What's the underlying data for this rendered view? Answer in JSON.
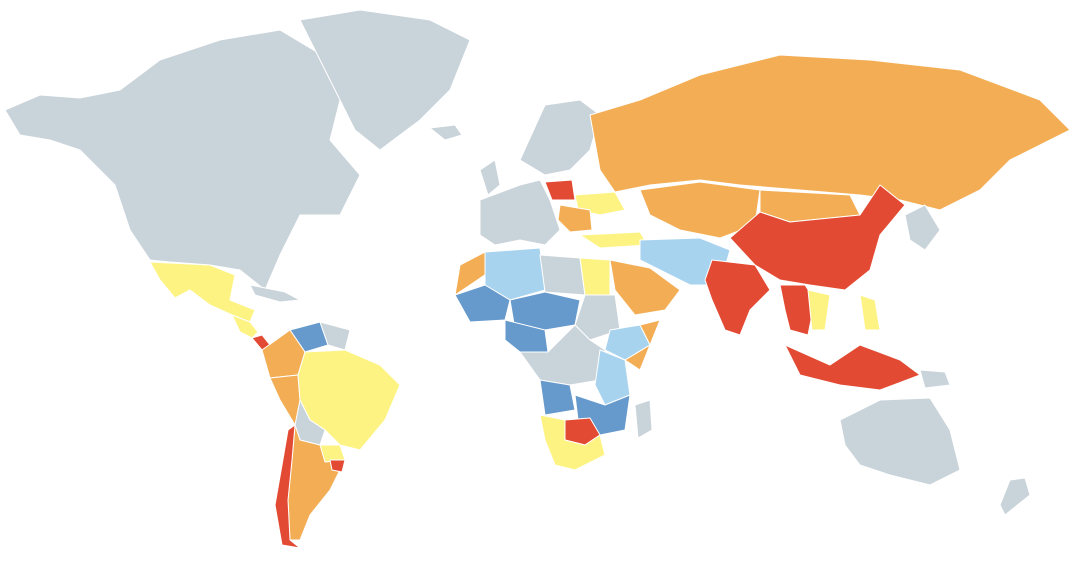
{
  "map": {
    "palette": {
      "no_data": "#c9d3da",
      "red": "#e34a33",
      "orange": "#f3ae55",
      "yellow": "#fdf383",
      "light_blue": "#a8d3ef",
      "blue": "#6699cc"
    },
    "regions": [
      {
        "name": "north-america",
        "category": "no_data"
      },
      {
        "name": "greenland",
        "category": "no_data"
      },
      {
        "name": "iceland",
        "category": "no_data"
      },
      {
        "name": "mexico",
        "category": "yellow"
      },
      {
        "name": "central-america",
        "category": "yellow"
      },
      {
        "name": "costa-rica",
        "category": "red"
      },
      {
        "name": "caribbean",
        "category": "no_data"
      },
      {
        "name": "venezuela",
        "category": "blue"
      },
      {
        "name": "colombia-ecuador",
        "category": "orange"
      },
      {
        "name": "peru",
        "category": "orange"
      },
      {
        "name": "brazil",
        "category": "yellow"
      },
      {
        "name": "bolivia",
        "category": "no_data"
      },
      {
        "name": "guianas",
        "category": "no_data"
      },
      {
        "name": "chile",
        "category": "red"
      },
      {
        "name": "argentina",
        "category": "orange"
      },
      {
        "name": "paraguay",
        "category": "yellow"
      },
      {
        "name": "uruguay",
        "category": "red"
      },
      {
        "name": "western-europe",
        "category": "no_data"
      },
      {
        "name": "scandinavia",
        "category": "no_data"
      },
      {
        "name": "uk-ireland",
        "category": "no_data"
      },
      {
        "name": "poland",
        "category": "red"
      },
      {
        "name": "ukraine",
        "category": "yellow"
      },
      {
        "name": "balkans",
        "category": "orange"
      },
      {
        "name": "turkey",
        "category": "yellow"
      },
      {
        "name": "russia",
        "category": "orange"
      },
      {
        "name": "kazakhstan-central-asia",
        "category": "orange"
      },
      {
        "name": "china",
        "category": "red"
      },
      {
        "name": "mongolia",
        "category": "orange"
      },
      {
        "name": "india",
        "category": "red"
      },
      {
        "name": "southeast-asia",
        "category": "red"
      },
      {
        "name": "vietnam-cambodia",
        "category": "yellow"
      },
      {
        "name": "philippines",
        "category": "yellow"
      },
      {
        "name": "indonesia",
        "category": "red"
      },
      {
        "name": "papua-new-guinea",
        "category": "no_data"
      },
      {
        "name": "japan-korea",
        "category": "no_data"
      },
      {
        "name": "iran-middle-east",
        "category": "light_blue"
      },
      {
        "name": "arabian-peninsula",
        "category": "orange"
      },
      {
        "name": "egypt",
        "category": "yellow"
      },
      {
        "name": "morocco",
        "category": "orange"
      },
      {
        "name": "algeria",
        "category": "light_blue"
      },
      {
        "name": "libya",
        "category": "no_data"
      },
      {
        "name": "mali",
        "category": "blue"
      },
      {
        "name": "niger-chad",
        "category": "blue"
      },
      {
        "name": "nigeria",
        "category": "blue"
      },
      {
        "name": "sudan",
        "category": "no_data"
      },
      {
        "name": "ethiopia",
        "category": "light_blue"
      },
      {
        "name": "somalia",
        "category": "orange"
      },
      {
        "name": "central-africa",
        "category": "no_data"
      },
      {
        "name": "kenya-tanzania",
        "category": "light_blue"
      },
      {
        "name": "angola",
        "category": "blue"
      },
      {
        "name": "zambia-mozambique",
        "category": "blue"
      },
      {
        "name": "namibia-south-africa",
        "category": "yellow"
      },
      {
        "name": "botswana-zimbabwe",
        "category": "red"
      },
      {
        "name": "madagascar",
        "category": "no_data"
      },
      {
        "name": "australia",
        "category": "no_data"
      },
      {
        "name": "new-zealand",
        "category": "no_data"
      }
    ]
  }
}
